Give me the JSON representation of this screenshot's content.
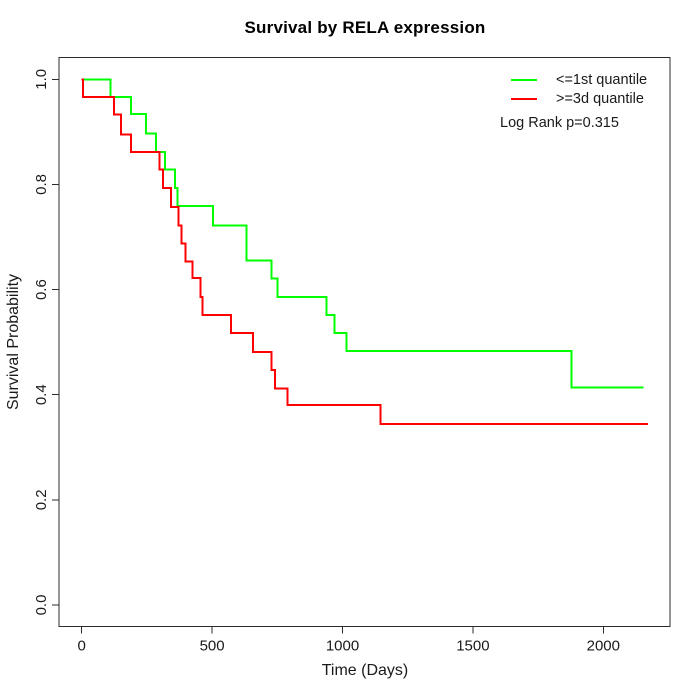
{
  "title": "Survival by RELA expression",
  "axes": {
    "x": {
      "label": "Time (Days)",
      "tick_labels": [
        "0",
        "500",
        "1000",
        "1500",
        "2000"
      ]
    },
    "y": {
      "label": "Survival Probability",
      "tick_labels": [
        "0.0",
        "0.2",
        "0.4",
        "0.6",
        "0.8",
        "1.0"
      ]
    }
  },
  "legend": {
    "items": [
      {
        "label": "<=1st quantile",
        "color": "#00ff00"
      },
      {
        "label": ">=3d quantile",
        "color": "#ff0000"
      }
    ],
    "annotation": "Log Rank p=0.315"
  },
  "chart_data": {
    "type": "line",
    "subtype": "kaplan-meier-step",
    "title": "Survival by RELA expression",
    "xlabel": "Time (Days)",
    "ylabel": "Survival Probability",
    "xlim": [
      0,
      2200
    ],
    "ylim": [
      0,
      1
    ],
    "x_ticks": [
      0,
      500,
      1000,
      1500,
      2000
    ],
    "y_ticks": [
      0.0,
      0.2,
      0.4,
      0.6,
      0.8,
      1.0
    ],
    "grid": false,
    "legend_position": "top-right",
    "annotation": "Log Rank p=0.315",
    "series": [
      {
        "name": "<=1st quantile",
        "color": "#00ff00",
        "points": [
          [
            0,
            1.0
          ],
          [
            110,
            0.966
          ],
          [
            190,
            0.934
          ],
          [
            247,
            0.897
          ],
          [
            285,
            0.862
          ],
          [
            320,
            0.828
          ],
          [
            358,
            0.793
          ],
          [
            368,
            0.759
          ],
          [
            503,
            0.722
          ],
          [
            631,
            0.655
          ],
          [
            727,
            0.621
          ],
          [
            750,
            0.586
          ],
          [
            938,
            0.552
          ],
          [
            970,
            0.517
          ],
          [
            1015,
            0.483
          ],
          [
            1878,
            0.414
          ],
          [
            2155,
            0.414
          ]
        ]
      },
      {
        "name": ">=3d quantile",
        "color": "#ff0000",
        "points": [
          [
            0,
            1.0
          ],
          [
            5,
            0.966
          ],
          [
            123,
            0.933
          ],
          [
            151,
            0.895
          ],
          [
            190,
            0.862
          ],
          [
            298,
            0.828
          ],
          [
            311,
            0.793
          ],
          [
            343,
            0.757
          ],
          [
            371,
            0.722
          ],
          [
            382,
            0.688
          ],
          [
            398,
            0.653
          ],
          [
            424,
            0.622
          ],
          [
            455,
            0.586
          ],
          [
            464,
            0.552
          ],
          [
            573,
            0.517
          ],
          [
            656,
            0.481
          ],
          [
            727,
            0.447
          ],
          [
            742,
            0.412
          ],
          [
            790,
            0.38
          ],
          [
            1146,
            0.344
          ],
          [
            2172,
            0.344
          ]
        ]
      }
    ]
  }
}
